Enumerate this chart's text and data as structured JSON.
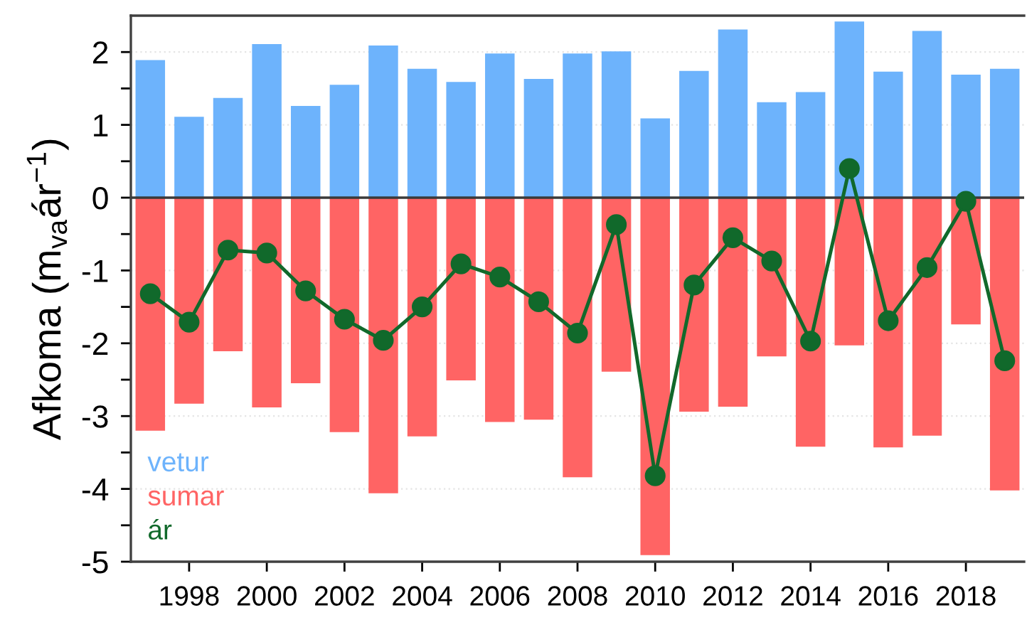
{
  "chart_data": {
    "type": "bar",
    "ylabel": "Afkoma (m$_{va}$ár$^{−1}$)",
    "x": [
      1997,
      1998,
      1999,
      2000,
      2001,
      2002,
      2003,
      2004,
      2005,
      2006,
      2007,
      2008,
      2009,
      2010,
      2011,
      2012,
      2013,
      2014,
      2015,
      2016,
      2017,
      2018,
      2019
    ],
    "stacked": true,
    "series": [
      {
        "name": "vetur",
        "color": "#6db3fc",
        "values": [
          1.89,
          1.11,
          1.37,
          2.11,
          1.26,
          1.55,
          2.09,
          1.77,
          1.59,
          1.98,
          1.63,
          1.98,
          2.01,
          1.09,
          1.74,
          2.31,
          1.31,
          1.45,
          2.42,
          1.73,
          2.29,
          1.69,
          1.77
        ]
      },
      {
        "name": "sumar",
        "color": "#ff6464",
        "values": [
          -3.2,
          -2.83,
          -2.11,
          -2.88,
          -2.55,
          -3.22,
          -4.06,
          -3.28,
          -2.51,
          -3.08,
          -3.05,
          -3.84,
          -2.39,
          -4.91,
          -2.94,
          -2.87,
          -2.18,
          -3.42,
          -2.03,
          -3.43,
          -3.27,
          -1.74,
          -4.02
        ]
      },
      {
        "name": "ár",
        "type": "line",
        "color": "#11692b",
        "values": [
          -1.32,
          -1.71,
          -0.72,
          -0.76,
          -1.28,
          -1.67,
          -1.96,
          -1.5,
          -0.91,
          -1.09,
          -1.43,
          -1.86,
          -0.37,
          -3.82,
          -1.2,
          -0.55,
          -0.87,
          -1.97,
          0.4,
          -1.69,
          -0.96,
          -0.05,
          -2.24
        ]
      }
    ],
    "xlim": [
      1996.5,
      2019.5
    ],
    "xticks": [
      1998,
      2000,
      2002,
      2004,
      2006,
      2008,
      2010,
      2012,
      2014,
      2016,
      2018
    ],
    "ylim": [
      -5,
      2.5
    ],
    "yticks": [
      -5,
      {
        "value": -4.5,
        "label": null
      },
      -4,
      {
        "value": -3.5,
        "label": null
      },
      -3,
      {
        "value": -2.5,
        "label": null
      },
      -2,
      {
        "value": -1.5,
        "label": null
      },
      -1,
      {
        "value": -0.5,
        "label": null
      },
      0,
      {
        "value": 0.5,
        "label": null
      },
      1,
      {
        "value": 1.5,
        "label": null
      },
      2
    ],
    "ref_lines": [
      {
        "axis": "y",
        "value": 0,
        "color": "#3a3a3a"
      }
    ],
    "grid": "y",
    "legend": "bottom left",
    "marker": "circle",
    "line_style": "solid"
  }
}
